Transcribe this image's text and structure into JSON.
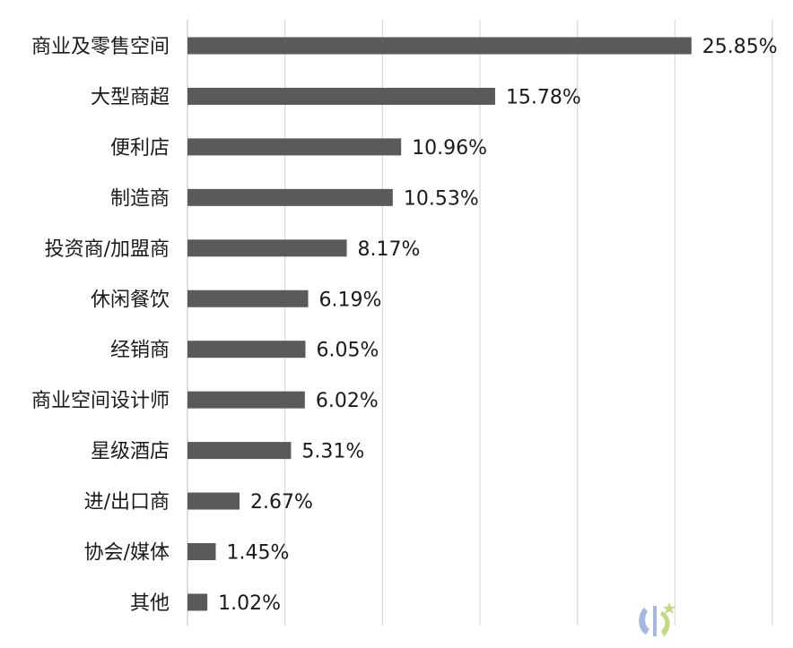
{
  "chart_data": {
    "type": "bar",
    "orientation": "horizontal",
    "categories": [
      "商业及零售空间",
      "大型商超",
      "便利店",
      "制造商",
      "投资商/加盟商",
      "休闲餐饮",
      "经销商",
      "商业空间设计师",
      "星级酒店",
      "进/出口商",
      "协会/媒体",
      "其他"
    ],
    "values": [
      25.85,
      15.78,
      10.96,
      10.53,
      8.17,
      6.19,
      6.05,
      6.02,
      5.31,
      2.67,
      1.45,
      1.02
    ],
    "value_labels": [
      "25.85%",
      "15.78%",
      "10.96%",
      "10.53%",
      "8.17%",
      "6.19%",
      "6.05%",
      "6.02%",
      "5.31%",
      "2.67%",
      "1.45%",
      "1.02%"
    ],
    "xlim": [
      0,
      30
    ],
    "grid": true,
    "bar_color": "#5a5a5a",
    "grid_color": "#d9d9d9"
  },
  "watermark": {
    "icon": "logo-icon",
    "colors": [
      "#8fa6d8",
      "#b8d36a"
    ]
  }
}
